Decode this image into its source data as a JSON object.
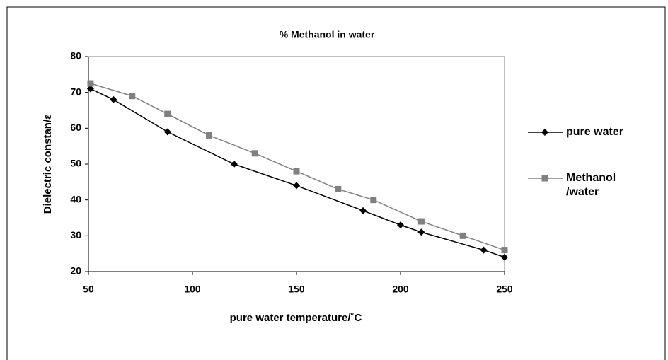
{
  "chart_data": {
    "type": "line",
    "title": "% Methanol in water",
    "x_label": "pure water temperature/˚C",
    "y_label": "Dielectric constan/ε",
    "xlim": [
      50,
      250
    ],
    "xticks": [
      50,
      100,
      150,
      200,
      250
    ],
    "ylim": [
      20,
      80
    ],
    "yticks": [
      20,
      30,
      40,
      50,
      60,
      70,
      80
    ],
    "legend": "right",
    "series": [
      {
        "name": "pure water",
        "color": "#000000",
        "marker": "diamond",
        "x": [
          51,
          62,
          88,
          120,
          150,
          182,
          200,
          210,
          240,
          250
        ],
        "values": [
          71,
          68,
          59,
          50,
          44,
          37,
          33,
          31,
          26,
          24
        ]
      },
      {
        "name": "Methanol /water",
        "color": "#808080",
        "marker": "square",
        "x": [
          51,
          71,
          88,
          108,
          130,
          150,
          170,
          187,
          210,
          230,
          250
        ],
        "values": [
          72.5,
          69,
          64,
          58,
          53,
          48,
          43,
          40,
          34,
          30,
          26
        ]
      }
    ]
  }
}
